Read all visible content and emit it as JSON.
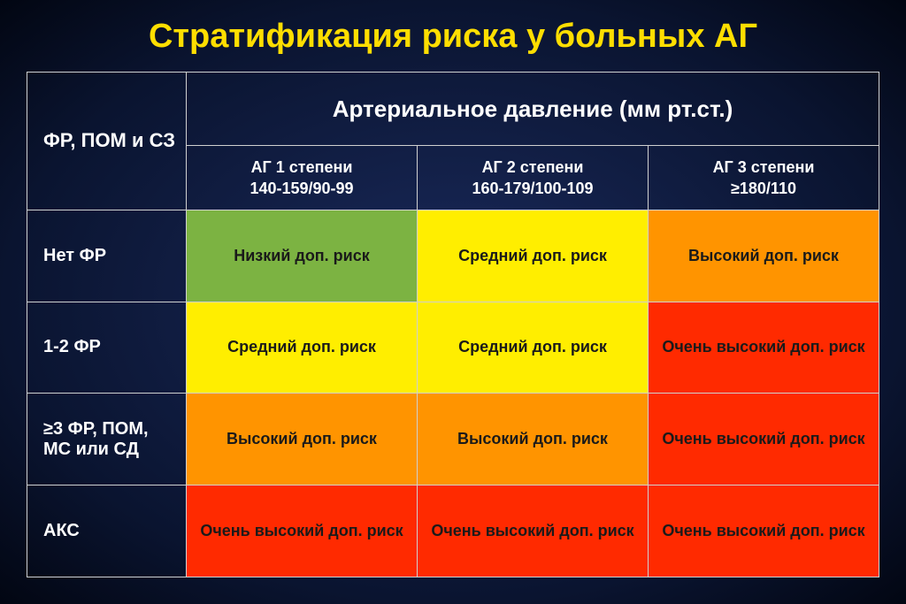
{
  "title": {
    "text": "Стратификация риска у больных АГ",
    "color": "#ffde00",
    "fontsize": 38
  },
  "header": {
    "left": "ФР, ПОМ и СЗ",
    "top": "Артериальное давление (мм рт.ст.)",
    "top_fontsize": 26,
    "left_fontsize": 22
  },
  "columns": [
    {
      "line1": "АГ 1 степени",
      "line2": "140-159/90-99"
    },
    {
      "line1": "АГ 2 степени",
      "line2": "160-179/100-109"
    },
    {
      "line1": "АГ 3 степени",
      "line2": "≥180/110"
    }
  ],
  "rows": [
    {
      "label": "Нет ФР"
    },
    {
      "label": "1-2 ФР"
    },
    {
      "label": "≥3 ФР, ПОМ, МС или СД"
    },
    {
      "label": "АКС"
    }
  ],
  "risk_colors": {
    "low": "#7cb342",
    "medium": "#ffee00",
    "high": "#ff9400",
    "vhigh": "#ff2a00"
  },
  "risk_text_colors": {
    "low": "#1a1a1a",
    "medium": "#1a1a1a",
    "high": "#1a1a1a",
    "vhigh": "#1a1a1a"
  },
  "cells": [
    [
      {
        "text": "Низкий доп. риск",
        "level": "low",
        "fontsize": 18
      },
      {
        "text": "Средний доп. риск",
        "level": "medium",
        "fontsize": 18
      },
      {
        "text": "Высокий доп. риск",
        "level": "high",
        "fontsize": 18
      }
    ],
    [
      {
        "text": "Средний доп. риск",
        "level": "medium",
        "fontsize": 18
      },
      {
        "text": "Средний доп. риск",
        "level": "medium",
        "fontsize": 18
      },
      {
        "text": "Очень высокий доп. риск",
        "level": "vhigh",
        "fontsize": 18
      }
    ],
    [
      {
        "text": "Высокий доп. риск",
        "level": "high",
        "fontsize": 18
      },
      {
        "text": "Высокий доп. риск",
        "level": "high",
        "fontsize": 18
      },
      {
        "text": "Очень высокий доп. риск",
        "level": "vhigh",
        "fontsize": 18
      }
    ],
    [
      {
        "text": "Очень высокий доп. риск",
        "level": "vhigh",
        "fontsize": 18
      },
      {
        "text": "Очень высокий доп. риск",
        "level": "vhigh",
        "fontsize": 18
      },
      {
        "text": "Очень высокий доп. риск",
        "level": "vhigh",
        "fontsize": 18
      }
    ]
  ],
  "row_heights": {
    "header_main": 80,
    "header_sub": 70,
    "body": 100
  }
}
